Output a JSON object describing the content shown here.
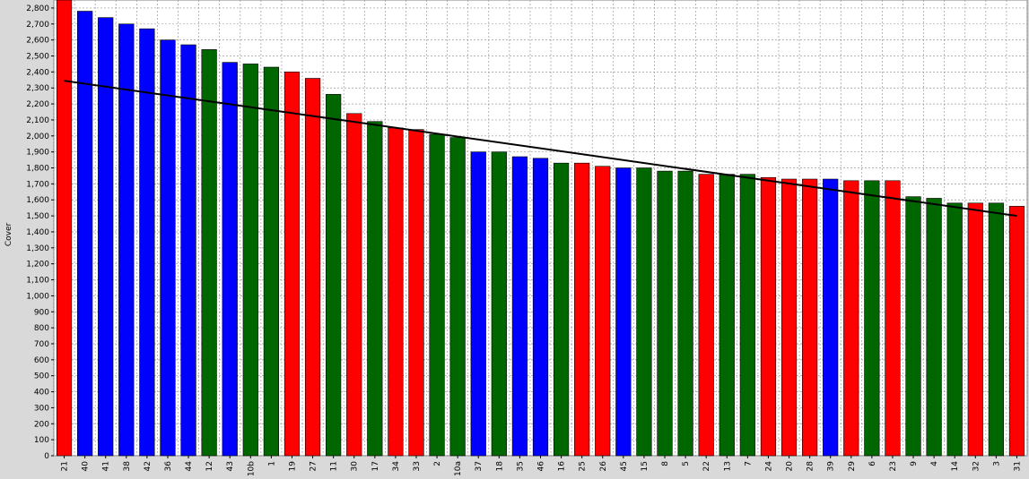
{
  "chart_data": {
    "type": "bar",
    "title": "",
    "xlabel": "",
    "ylabel": "Cover",
    "ylim": [
      0,
      2850
    ],
    "ytick_step": 100,
    "grid": true,
    "legend": false,
    "colors": {
      "red": "#ff0000",
      "blue": "#0000ff",
      "green": "#006600",
      "trend": "#000000",
      "plot_bg": "#ffffff",
      "grid": "#999999"
    },
    "categories": [
      "21",
      "40",
      "41",
      "38",
      "42",
      "36",
      "44",
      "12",
      "43",
      "10b",
      "1",
      "19",
      "27",
      "11",
      "30",
      "17",
      "34",
      "33",
      "2",
      "10a",
      "37",
      "18",
      "35",
      "46",
      "16",
      "25",
      "26",
      "45",
      "15",
      "8",
      "5",
      "22",
      "13",
      "7",
      "24",
      "20",
      "28",
      "39",
      "29",
      "6",
      "23",
      "9",
      "4",
      "14",
      "32",
      "3",
      "31"
    ],
    "values": [
      2860,
      2780,
      2740,
      2700,
      2670,
      2600,
      2570,
      2540,
      2460,
      2450,
      2430,
      2400,
      2360,
      2260,
      2140,
      2090,
      2050,
      2040,
      2010,
      1990,
      1900,
      1900,
      1870,
      1860,
      1830,
      1830,
      1810,
      1800,
      1800,
      1780,
      1780,
      1760,
      1760,
      1760,
      1740,
      1730,
      1730,
      1730,
      1720,
      1720,
      1720,
      1620,
      1610,
      1580,
      1580,
      1580,
      1560
    ],
    "bar_colors": [
      "red",
      "blue",
      "blue",
      "blue",
      "blue",
      "blue",
      "blue",
      "green",
      "blue",
      "green",
      "green",
      "red",
      "red",
      "green",
      "red",
      "green",
      "red",
      "red",
      "green",
      "green",
      "blue",
      "green",
      "blue",
      "blue",
      "green",
      "red",
      "red",
      "blue",
      "green",
      "green",
      "green",
      "red",
      "green",
      "green",
      "red",
      "red",
      "red",
      "blue",
      "red",
      "green",
      "red",
      "green",
      "green",
      "green",
      "red",
      "green",
      "red"
    ],
    "trendline": {
      "start": {
        "x": "21",
        "y": 2345
      },
      "end": {
        "x": "31",
        "y": 1500
      }
    }
  }
}
